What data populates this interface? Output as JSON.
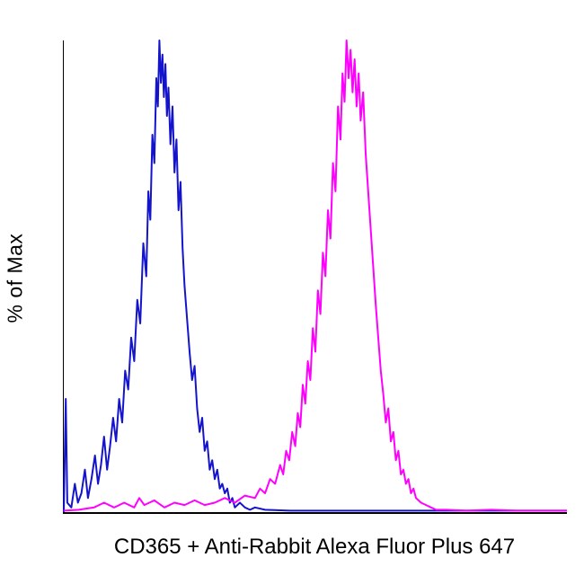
{
  "chart_data": {
    "type": "line",
    "subtype": "flow-cytometry-histogram-overlay",
    "title": "",
    "xlabel": "CD365 + Anti-Rabbit Alexa Fluor Plus 647",
    "ylabel": "% of Max",
    "xlim": [
      0,
      100
    ],
    "ylim": [
      0,
      100
    ],
    "grid": false,
    "legend": "none",
    "x_axis_scale": "log (unlabeled)",
    "background_color": "#ffffff",
    "axis_color": "#000000",
    "series": [
      {
        "id": "blue",
        "name": "blue curve (left population)",
        "color": "#1414cc",
        "peak_x": 19,
        "peak_y": 100,
        "points": [
          [
            0,
            0
          ],
          [
            0.4,
            24
          ],
          [
            0.7,
            2
          ],
          [
            1.5,
            1
          ],
          [
            2.2,
            6
          ],
          [
            2.8,
            2
          ],
          [
            3.5,
            4
          ],
          [
            4.2,
            9
          ],
          [
            4.8,
            3
          ],
          [
            5.5,
            7
          ],
          [
            6.2,
            12
          ],
          [
            6.8,
            6
          ],
          [
            7.4,
            10
          ],
          [
            8,
            16
          ],
          [
            8.6,
            9
          ],
          [
            9.2,
            14
          ],
          [
            9.8,
            20
          ],
          [
            10.4,
            15
          ],
          [
            11,
            24
          ],
          [
            11.6,
            19
          ],
          [
            12.2,
            30
          ],
          [
            12.8,
            26
          ],
          [
            13.4,
            37
          ],
          [
            14,
            32
          ],
          [
            14.6,
            45
          ],
          [
            15.2,
            40
          ],
          [
            15.8,
            57
          ],
          [
            16.4,
            50
          ],
          [
            16.8,
            68
          ],
          [
            17.2,
            62
          ],
          [
            17.6,
            80
          ],
          [
            18,
            74
          ],
          [
            18.4,
            92
          ],
          [
            18.7,
            86
          ],
          [
            19,
            100
          ],
          [
            19.3,
            91
          ],
          [
            19.6,
            97
          ],
          [
            19.9,
            88
          ],
          [
            20.2,
            95
          ],
          [
            20.5,
            84
          ],
          [
            20.8,
            90
          ],
          [
            21.2,
            78
          ],
          [
            21.6,
            86
          ],
          [
            22,
            72
          ],
          [
            22.4,
            79
          ],
          [
            22.8,
            64
          ],
          [
            23.2,
            70
          ],
          [
            23.6,
            56
          ],
          [
            24,
            48
          ],
          [
            24.5,
            41
          ],
          [
            25,
            34
          ],
          [
            25.5,
            28
          ],
          [
            26,
            31
          ],
          [
            26.5,
            22
          ],
          [
            27,
            17
          ],
          [
            27.5,
            20
          ],
          [
            28,
            13
          ],
          [
            28.5,
            15
          ],
          [
            29,
            9
          ],
          [
            29.5,
            11
          ],
          [
            30,
            7
          ],
          [
            30.5,
            9
          ],
          [
            31,
            5
          ],
          [
            31.5,
            6
          ],
          [
            32,
            4
          ],
          [
            32.5,
            5
          ],
          [
            33,
            2
          ],
          [
            33.5,
            3
          ],
          [
            34,
            1
          ],
          [
            35,
            2
          ],
          [
            36,
            1
          ],
          [
            37,
            0.5
          ],
          [
            38,
            1
          ],
          [
            40,
            0.5
          ],
          [
            45,
            0.3
          ],
          [
            55,
            0.3
          ],
          [
            70,
            0.3
          ],
          [
            100,
            0.3
          ]
        ]
      },
      {
        "id": "magenta",
        "name": "magenta curve (right population)",
        "color": "#ff00ff",
        "peak_x": 56,
        "peak_y": 100,
        "points": [
          [
            0,
            0.3
          ],
          [
            3,
            0.5
          ],
          [
            6,
            1
          ],
          [
            8,
            2
          ],
          [
            10,
            1
          ],
          [
            12,
            2
          ],
          [
            14,
            1
          ],
          [
            15,
            3
          ],
          [
            16,
            1.5
          ],
          [
            18,
            2.5
          ],
          [
            20,
            1
          ],
          [
            22,
            2
          ],
          [
            24,
            1.5
          ],
          [
            26,
            2.5
          ],
          [
            28,
            1.5
          ],
          [
            30,
            2
          ],
          [
            32,
            3
          ],
          [
            34,
            2
          ],
          [
            36,
            3.5
          ],
          [
            38,
            3
          ],
          [
            39,
            5
          ],
          [
            40,
            4
          ],
          [
            41,
            7
          ],
          [
            42,
            6
          ],
          [
            43,
            10
          ],
          [
            43.6,
            8
          ],
          [
            44.2,
            13
          ],
          [
            44.8,
            11
          ],
          [
            45.4,
            17
          ],
          [
            46,
            14
          ],
          [
            46.5,
            21
          ],
          [
            47,
            18
          ],
          [
            47.5,
            27
          ],
          [
            48,
            23
          ],
          [
            48.5,
            32
          ],
          [
            49,
            28
          ],
          [
            49.5,
            39
          ],
          [
            50,
            34
          ],
          [
            50.5,
            47
          ],
          [
            51,
            42
          ],
          [
            51.5,
            55
          ],
          [
            52,
            50
          ],
          [
            52.5,
            64
          ],
          [
            53,
            58
          ],
          [
            53.5,
            74
          ],
          [
            54,
            68
          ],
          [
            54.5,
            86
          ],
          [
            55,
            79
          ],
          [
            55.4,
            93
          ],
          [
            55.8,
            87
          ],
          [
            56.2,
            100
          ],
          [
            56.6,
            92
          ],
          [
            57,
            98
          ],
          [
            57.4,
            89
          ],
          [
            57.8,
            96
          ],
          [
            58.2,
            86
          ],
          [
            58.6,
            93
          ],
          [
            59,
            83
          ],
          [
            59.5,
            89
          ],
          [
            60,
            76
          ],
          [
            60.5,
            68
          ],
          [
            61,
            60
          ],
          [
            61.5,
            52
          ],
          [
            62,
            44
          ],
          [
            62.5,
            37
          ],
          [
            63,
            30
          ],
          [
            63.5,
            25
          ],
          [
            64,
            19
          ],
          [
            64.5,
            22
          ],
          [
            65,
            15
          ],
          [
            65.5,
            17
          ],
          [
            66,
            11
          ],
          [
            66.5,
            13
          ],
          [
            67,
            8
          ],
          [
            67.5,
            9
          ],
          [
            68,
            6
          ],
          [
            68.5,
            7
          ],
          [
            69,
            4
          ],
          [
            69.5,
            5
          ],
          [
            70,
            3
          ],
          [
            71,
            2
          ],
          [
            72,
            1.5
          ],
          [
            73,
            1
          ],
          [
            74,
            0.5
          ],
          [
            76,
            0.5
          ],
          [
            80,
            0.3
          ],
          [
            85,
            0.5
          ],
          [
            90,
            0.3
          ],
          [
            100,
            0.3
          ]
        ]
      }
    ]
  }
}
